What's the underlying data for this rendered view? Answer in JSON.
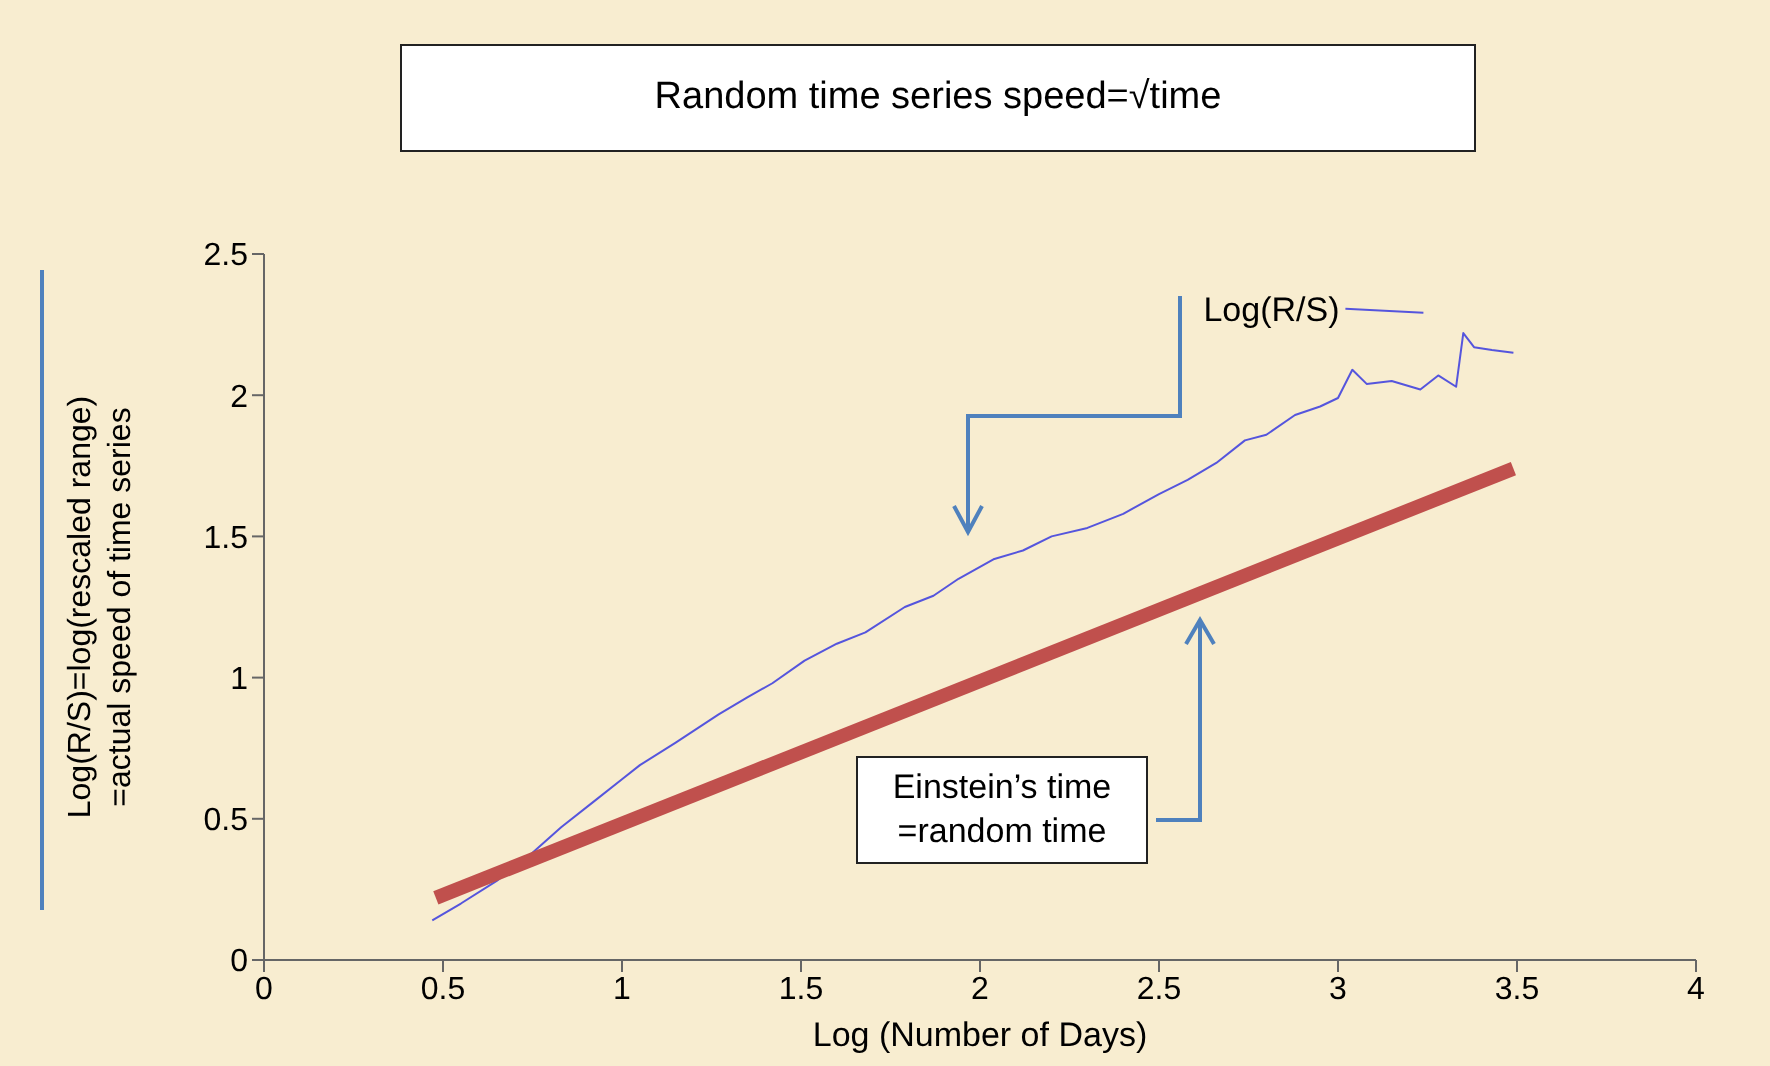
{
  "chart_data": {
    "type": "line",
    "title": "Random time series speed=√time",
    "xlabel": "Log (Number of Days)",
    "ylabel": "Log(R/S)=log(rescaled range) =actual speed of time series",
    "xlim": [
      0,
      4
    ],
    "xticks": [
      0,
      0.5,
      1,
      1.5,
      2,
      2.5,
      3,
      3.5,
      4
    ],
    "ylim": [
      0,
      2.5
    ],
    "yticks": [
      0,
      0.5,
      1,
      1.5,
      2,
      2.5
    ],
    "legend": "top right",
    "marker": "none",
    "line_style": "solid",
    "series": [
      {
        "name": "Log(R/S)",
        "color": "#5555dd",
        "x": [
          0.47,
          0.55,
          0.65,
          0.75,
          0.83,
          0.92,
          1.0,
          1.05,
          1.15,
          1.27,
          1.35,
          1.42,
          1.51,
          1.6,
          1.68,
          1.79,
          1.87,
          1.94,
          2.04,
          2.12,
          2.2,
          2.3,
          2.4,
          2.5,
          2.58,
          2.66,
          2.74,
          2.8,
          2.88,
          2.95,
          3.0,
          3.04,
          3.08,
          3.15,
          3.23,
          3.28,
          3.33,
          3.35,
          3.38,
          3.43,
          3.49
        ],
        "values": [
          0.14,
          0.2,
          0.28,
          0.38,
          0.47,
          0.56,
          0.64,
          0.69,
          0.77,
          0.87,
          0.93,
          0.98,
          1.06,
          1.12,
          1.16,
          1.25,
          1.29,
          1.35,
          1.42,
          1.45,
          1.5,
          1.53,
          1.58,
          1.65,
          1.7,
          1.76,
          1.84,
          1.86,
          1.93,
          1.96,
          1.99,
          2.09,
          2.04,
          2.05,
          2.02,
          2.07,
          2.03,
          2.22,
          2.17,
          2.16,
          2.15
        ]
      },
      {
        "color": "#c0504d",
        "x": [
          0.48,
          3.49
        ],
        "values": [
          0.22,
          1.74
        ]
      }
    ],
    "annotations": [
      "Einstein’s time =random time"
    ]
  }
}
